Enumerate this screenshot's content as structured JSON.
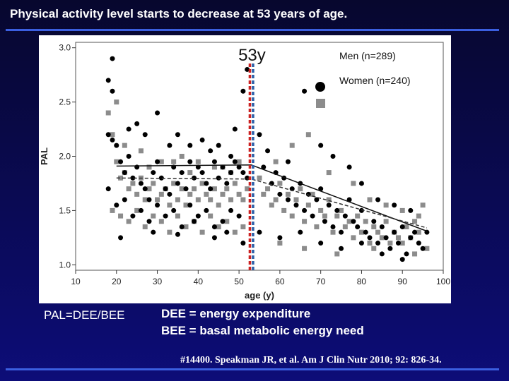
{
  "slide": {
    "title": "Physical activity level starts to decrease at 53 years of age.",
    "formula": "PAL=DEE/BEE",
    "definitions": [
      "DEE = energy expenditure",
      "BEE = basal metabolic energy need"
    ],
    "citation": "#14400. Speakman JR, et al. Am J Clin Nutr 2010; 92: 826-34."
  },
  "colors": {
    "background": "#0a0a55",
    "accent_rule": "#3b5fe0",
    "men": "#000000",
    "women": "#8c8c8c",
    "marker_red": "#cc2222",
    "marker_blue": "#2a5fa8"
  },
  "chart_data": {
    "type": "scatter",
    "xlabel": "age (y)",
    "ylabel": "PAL",
    "xlim": [
      10,
      100
    ],
    "ylim": [
      0.95,
      3.05
    ],
    "xticks": [
      10,
      20,
      30,
      40,
      50,
      60,
      70,
      80,
      90,
      100
    ],
    "yticks": [
      1.0,
      1.5,
      2.0,
      2.5,
      3.0
    ],
    "ytick_labels": [
      "1.0",
      "1.5",
      "2.0",
      "2.5",
      "3.0"
    ],
    "grid": false,
    "legend_position": "top-right",
    "annotation": {
      "label": "53y",
      "x": 53
    },
    "series": [
      {
        "name": "Men (n=289)",
        "marker": "circle",
        "color": "#000000",
        "trend": {
          "style": "solid",
          "points": [
            [
              20,
              1.91
            ],
            [
              53,
              1.92
            ],
            [
              96,
              1.31
            ]
          ]
        },
        "points": [
          [
            18,
            2.7
          ],
          [
            19,
            2.6
          ],
          [
            19,
            2.15
          ],
          [
            20,
            2.1
          ],
          [
            21,
            1.95
          ],
          [
            22,
            1.85
          ],
          [
            23,
            2.0
          ],
          [
            24,
            1.8
          ],
          [
            25,
            1.9
          ],
          [
            26,
            1.75
          ],
          [
            27,
            1.7
          ],
          [
            28,
            1.6
          ],
          [
            29,
            1.85
          ],
          [
            30,
            1.95
          ],
          [
            31,
            1.8
          ],
          [
            32,
            1.7
          ],
          [
            33,
            1.65
          ],
          [
            34,
            1.9
          ],
          [
            35,
            1.75
          ],
          [
            36,
            1.85
          ],
          [
            37,
            1.7
          ],
          [
            38,
            1.95
          ],
          [
            39,
            1.8
          ],
          [
            40,
            1.9
          ],
          [
            41,
            1.85
          ],
          [
            42,
            1.75
          ],
          [
            43,
            1.7
          ],
          [
            44,
            1.95
          ],
          [
            45,
            1.8
          ],
          [
            46,
            1.9
          ],
          [
            47,
            1.75
          ],
          [
            48,
            1.85
          ],
          [
            49,
            1.95
          ],
          [
            50,
            1.9
          ],
          [
            51,
            1.85
          ],
          [
            52,
            1.8
          ],
          [
            18,
            1.7
          ],
          [
            20,
            1.55
          ],
          [
            22,
            1.6
          ],
          [
            24,
            1.45
          ],
          [
            26,
            1.5
          ],
          [
            28,
            1.4
          ],
          [
            30,
            1.55
          ],
          [
            32,
            1.45
          ],
          [
            34,
            1.5
          ],
          [
            36,
            1.35
          ],
          [
            38,
            1.55
          ],
          [
            40,
            1.45
          ],
          [
            42,
            1.5
          ],
          [
            44,
            1.35
          ],
          [
            46,
            1.4
          ],
          [
            48,
            1.5
          ],
          [
            50,
            1.45
          ],
          [
            19,
            2.9
          ],
          [
            25,
            2.3
          ],
          [
            30,
            2.4
          ],
          [
            35,
            2.2
          ],
          [
            41,
            2.15
          ],
          [
            45,
            2.1
          ],
          [
            49,
            2.25
          ],
          [
            51,
            2.6
          ],
          [
            52,
            2.8
          ],
          [
            18,
            2.2
          ],
          [
            23,
            2.25
          ],
          [
            27,
            2.2
          ],
          [
            33,
            2.1
          ],
          [
            38,
            2.1
          ],
          [
            43,
            2.05
          ],
          [
            48,
            2.0
          ],
          [
            21,
            1.25
          ],
          [
            29,
            1.3
          ],
          [
            35,
            1.28
          ],
          [
            39,
            1.4
          ],
          [
            44,
            1.25
          ],
          [
            47,
            1.3
          ],
          [
            51,
            1.2
          ],
          [
            55,
            2.2
          ],
          [
            56,
            1.9
          ],
          [
            58,
            1.75
          ],
          [
            59,
            1.85
          ],
          [
            60,
            1.65
          ],
          [
            61,
            1.8
          ],
          [
            62,
            1.6
          ],
          [
            63,
            1.7
          ],
          [
            64,
            1.55
          ],
          [
            65,
            1.75
          ],
          [
            66,
            1.5
          ],
          [
            67,
            1.65
          ],
          [
            68,
            1.45
          ],
          [
            69,
            1.6
          ],
          [
            70,
            1.7
          ],
          [
            71,
            1.4
          ],
          [
            72,
            1.55
          ],
          [
            73,
            1.35
          ],
          [
            74,
            1.5
          ],
          [
            75,
            1.3
          ],
          [
            76,
            1.45
          ],
          [
            77,
            1.6
          ],
          [
            78,
            1.4
          ],
          [
            79,
            1.35
          ],
          [
            80,
            1.5
          ],
          [
            81,
            1.3
          ],
          [
            82,
            1.25
          ],
          [
            83,
            1.4
          ],
          [
            84,
            1.2
          ],
          [
            85,
            1.35
          ],
          [
            86,
            1.25
          ],
          [
            87,
            1.15
          ],
          [
            88,
            1.3
          ],
          [
            89,
            1.2
          ],
          [
            90,
            1.35
          ],
          [
            91,
            1.1
          ],
          [
            92,
            1.25
          ],
          [
            93,
            1.3
          ],
          [
            94,
            1.2
          ],
          [
            95,
            1.15
          ],
          [
            96,
            1.3
          ],
          [
            57,
            2.05
          ],
          [
            62,
            1.95
          ],
          [
            66,
            2.6
          ],
          [
            70,
            2.1
          ],
          [
            73,
            2.0
          ],
          [
            77,
            1.9
          ],
          [
            80,
            1.75
          ],
          [
            84,
            1.6
          ],
          [
            88,
            1.55
          ],
          [
            92,
            1.5
          ],
          [
            55,
            1.3
          ],
          [
            60,
            1.25
          ],
          [
            65,
            1.3
          ],
          [
            70,
            1.2
          ],
          [
            75,
            1.15
          ],
          [
            80,
            1.2
          ],
          [
            85,
            1.1
          ],
          [
            90,
            1.05
          ]
        ]
      },
      {
        "name": "Women (n=240)",
        "marker": "square",
        "color": "#8c8c8c",
        "trend": {
          "style": "dashed",
          "points": [
            [
              20,
              1.8
            ],
            [
              53,
              1.79
            ],
            [
              96,
              1.34
            ]
          ]
        },
        "points": [
          [
            18,
            2.4
          ],
          [
            19,
            2.2
          ],
          [
            20,
            1.95
          ],
          [
            21,
            1.8
          ],
          [
            22,
            1.85
          ],
          [
            23,
            1.7
          ],
          [
            24,
            1.75
          ],
          [
            25,
            1.65
          ],
          [
            26,
            1.8
          ],
          [
            27,
            1.6
          ],
          [
            28,
            1.7
          ],
          [
            29,
            1.75
          ],
          [
            30,
            1.6
          ],
          [
            31,
            1.65
          ],
          [
            32,
            1.7
          ],
          [
            33,
            1.55
          ],
          [
            34,
            1.75
          ],
          [
            35,
            1.6
          ],
          [
            36,
            1.7
          ],
          [
            37,
            1.55
          ],
          [
            38,
            1.65
          ],
          [
            39,
            1.7
          ],
          [
            40,
            1.6
          ],
          [
            41,
            1.75
          ],
          [
            42,
            1.65
          ],
          [
            43,
            1.6
          ],
          [
            44,
            1.7
          ],
          [
            45,
            1.55
          ],
          [
            46,
            1.65
          ],
          [
            47,
            1.7
          ],
          [
            48,
            1.6
          ],
          [
            49,
            1.75
          ],
          [
            50,
            1.65
          ],
          [
            51,
            1.6
          ],
          [
            52,
            1.7
          ],
          [
            19,
            1.5
          ],
          [
            21,
            1.45
          ],
          [
            23,
            1.4
          ],
          [
            25,
            1.5
          ],
          [
            27,
            1.35
          ],
          [
            29,
            1.45
          ],
          [
            31,
            1.4
          ],
          [
            33,
            1.3
          ],
          [
            35,
            1.45
          ],
          [
            37,
            1.35
          ],
          [
            39,
            1.4
          ],
          [
            41,
            1.3
          ],
          [
            43,
            1.45
          ],
          [
            45,
            1.35
          ],
          [
            47,
            1.4
          ],
          [
            49,
            1.3
          ],
          [
            51,
            1.35
          ],
          [
            20,
            2.5
          ],
          [
            26,
            2.05
          ],
          [
            31,
            1.95
          ],
          [
            36,
            2.0
          ],
          [
            40,
            1.95
          ],
          [
            46,
            1.9
          ],
          [
            50,
            1.95
          ],
          [
            22,
            2.1
          ],
          [
            28,
            1.9
          ],
          [
            34,
            1.95
          ],
          [
            38,
            1.85
          ],
          [
            44,
            1.9
          ],
          [
            48,
            1.85
          ],
          [
            55,
            1.8
          ],
          [
            56,
            1.65
          ],
          [
            57,
            1.7
          ],
          [
            58,
            1.55
          ],
          [
            59,
            1.6
          ],
          [
            60,
            1.75
          ],
          [
            61,
            1.5
          ],
          [
            62,
            1.65
          ],
          [
            63,
            1.45
          ],
          [
            64,
            1.6
          ],
          [
            65,
            1.7
          ],
          [
            66,
            1.4
          ],
          [
            67,
            1.55
          ],
          [
            68,
            1.65
          ],
          [
            69,
            1.35
          ],
          [
            70,
            1.5
          ],
          [
            71,
            1.45
          ],
          [
            72,
            1.6
          ],
          [
            73,
            1.3
          ],
          [
            74,
            1.45
          ],
          [
            75,
            1.5
          ],
          [
            76,
            1.35
          ],
          [
            77,
            1.4
          ],
          [
            78,
            1.25
          ],
          [
            79,
            1.45
          ],
          [
            80,
            1.3
          ],
          [
            81,
            1.4
          ],
          [
            82,
            1.2
          ],
          [
            83,
            1.35
          ],
          [
            84,
            1.3
          ],
          [
            85,
            1.25
          ],
          [
            86,
            1.4
          ],
          [
            87,
            1.2
          ],
          [
            88,
            1.3
          ],
          [
            89,
            1.25
          ],
          [
            90,
            1.2
          ],
          [
            91,
            1.35
          ],
          [
            92,
            1.25
          ],
          [
            93,
            1.4
          ],
          [
            94,
            1.3
          ],
          [
            95,
            1.55
          ],
          [
            96,
            1.15
          ],
          [
            59,
            1.95
          ],
          [
            63,
            2.1
          ],
          [
            67,
            2.2
          ],
          [
            72,
            1.85
          ],
          [
            78,
            1.75
          ],
          [
            82,
            1.6
          ],
          [
            86,
            1.55
          ],
          [
            90,
            1.5
          ],
          [
            94,
            1.45
          ],
          [
            60,
            1.2
          ],
          [
            66,
            1.15
          ],
          [
            74,
            1.1
          ],
          [
            83,
            1.15
          ],
          [
            93,
            1.1
          ]
        ]
      }
    ]
  }
}
